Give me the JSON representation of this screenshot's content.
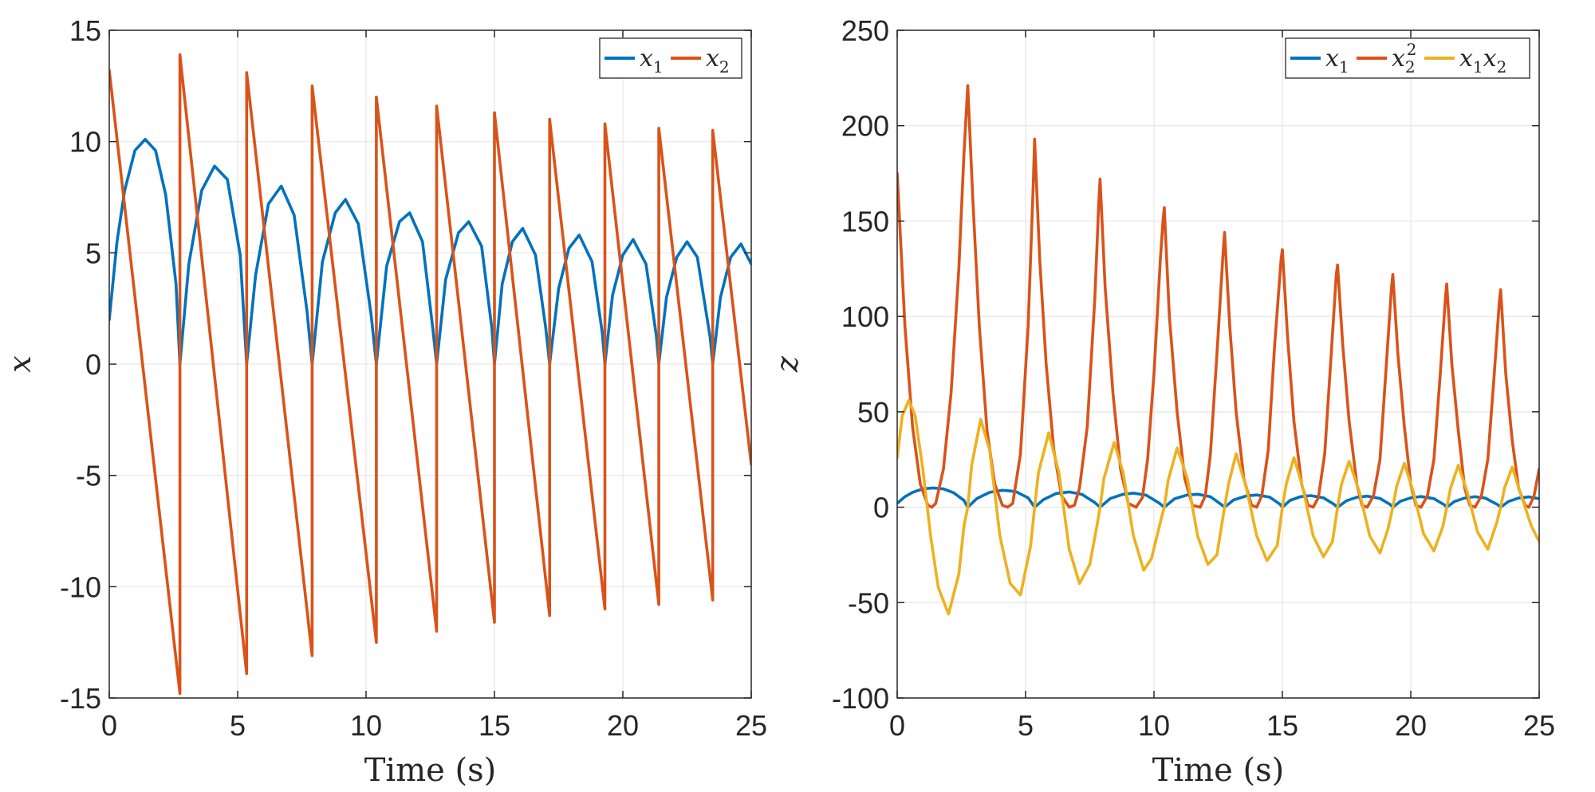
{
  "chart_data": [
    {
      "type": "line",
      "ylabel": "x",
      "xlabel": "Time (s)",
      "xlim": [
        0,
        25
      ],
      "ylim": [
        -15,
        15
      ],
      "xticks": [
        0,
        5,
        10,
        15,
        20,
        25
      ],
      "xtick_labels": [
        "0",
        "5",
        "10",
        "15",
        "20",
        "25"
      ],
      "yticks": [
        -15,
        -10,
        -5,
        0,
        5,
        10,
        15
      ],
      "ytick_labels": [
        "-15",
        "-10",
        "-5",
        "0",
        "5",
        "10",
        "15"
      ],
      "grid": true,
      "legend_position": "top-right",
      "series": [
        {
          "name": "x1",
          "legend": {
            "base": "x",
            "sub": "1",
            "sup": ""
          },
          "color": "#0072BD",
          "x": [
            0,
            0.3,
            0.6,
            1.0,
            1.4,
            1.8,
            2.2,
            2.6,
            2.75,
            3.1,
            3.6,
            4.1,
            4.6,
            5.1,
            5.35,
            5.7,
            6.2,
            6.7,
            7.2,
            7.7,
            7.9,
            8.3,
            8.8,
            9.2,
            9.7,
            10.2,
            10.4,
            10.8,
            11.3,
            11.7,
            12.2,
            12.6,
            12.75,
            13.1,
            13.6,
            14.0,
            14.5,
            14.9,
            15.0,
            15.3,
            15.7,
            16.1,
            16.6,
            17.0,
            17.15,
            17.5,
            17.9,
            18.3,
            18.8,
            19.2,
            19.3,
            19.6,
            20.0,
            20.4,
            20.9,
            21.3,
            21.4,
            21.7,
            22.1,
            22.5,
            22.9,
            23.4,
            23.5,
            23.8,
            24.2,
            24.6,
            25.0
          ],
          "y": [
            2.0,
            5.5,
            7.8,
            9.6,
            10.1,
            9.6,
            7.6,
            3.6,
            0,
            4.5,
            7.8,
            8.9,
            8.3,
            4.9,
            0,
            4.0,
            7.2,
            8.0,
            6.7,
            2.4,
            0,
            4.6,
            6.8,
            7.4,
            6.3,
            2.2,
            0,
            4.4,
            6.4,
            6.8,
            5.5,
            1.6,
            0,
            3.8,
            5.9,
            6.4,
            5.3,
            1.6,
            0,
            3.6,
            5.5,
            6.1,
            4.9,
            1.6,
            0,
            3.4,
            5.2,
            5.8,
            4.6,
            1.4,
            0,
            3.1,
            4.9,
            5.6,
            4.5,
            1.3,
            0,
            3.0,
            4.8,
            5.5,
            4.8,
            1.2,
            0,
            3.0,
            4.8,
            5.4,
            4.5
          ]
        },
        {
          "name": "x2",
          "legend": {
            "base": "x",
            "sub": "2",
            "sup": ""
          },
          "color": "#D95319",
          "x": [
            0,
            2.75,
            2.75,
            5.35,
            5.35,
            7.9,
            7.9,
            10.4,
            10.4,
            12.75,
            12.75,
            15.0,
            15.0,
            17.15,
            17.15,
            19.3,
            19.3,
            21.4,
            21.4,
            23.5,
            23.5,
            25.0
          ],
          "y": [
            13.2,
            -14.8,
            13.9,
            -13.9,
            13.1,
            -13.1,
            12.5,
            -12.5,
            12.0,
            -12.0,
            11.6,
            -11.6,
            11.3,
            -11.3,
            11.0,
            -11.0,
            10.8,
            -10.8,
            10.6,
            -10.6,
            10.5,
            -4.5
          ]
        }
      ]
    },
    {
      "type": "line",
      "ylabel": "z",
      "xlabel": "Time (s)",
      "xlim": [
        0,
        25
      ],
      "ylim": [
        -100,
        250
      ],
      "xticks": [
        0,
        5,
        10,
        15,
        20,
        25
      ],
      "xtick_labels": [
        "0",
        "5",
        "10",
        "15",
        "20",
        "25"
      ],
      "yticks": [
        -100,
        -50,
        0,
        50,
        100,
        150,
        200,
        250
      ],
      "ytick_labels": [
        "-100",
        "-50",
        "0",
        "50",
        "100",
        "150",
        "200",
        "250"
      ],
      "grid": true,
      "legend_position": "top-right",
      "series": [
        {
          "name": "x1",
          "legend": {
            "base": "x",
            "sub": "1",
            "sup": ""
          },
          "color": "#0072BD",
          "x": [
            0,
            0.3,
            0.6,
            1.0,
            1.4,
            1.8,
            2.2,
            2.6,
            2.75,
            3.1,
            3.6,
            4.1,
            4.6,
            5.1,
            5.35,
            5.7,
            6.2,
            6.7,
            7.2,
            7.7,
            7.9,
            8.3,
            8.8,
            9.2,
            9.7,
            10.2,
            10.4,
            10.8,
            11.3,
            11.7,
            12.2,
            12.6,
            12.75,
            13.1,
            13.6,
            14.0,
            14.5,
            14.9,
            15.0,
            15.3,
            15.7,
            16.1,
            16.6,
            17.0,
            17.15,
            17.5,
            17.9,
            18.3,
            18.8,
            19.2,
            19.3,
            19.6,
            20.0,
            20.4,
            20.9,
            21.3,
            21.4,
            21.7,
            22.1,
            22.5,
            22.9,
            23.4,
            23.5,
            23.8,
            24.2,
            24.6,
            25.0
          ],
          "y": [
            2.0,
            5.5,
            7.8,
            9.6,
            10.1,
            9.6,
            7.6,
            3.6,
            0,
            4.5,
            7.8,
            8.9,
            8.3,
            4.9,
            0,
            4.0,
            7.2,
            8.0,
            6.7,
            2.4,
            0,
            4.6,
            6.8,
            7.4,
            6.3,
            2.2,
            0,
            4.4,
            6.4,
            6.8,
            5.5,
            1.6,
            0,
            3.8,
            5.9,
            6.4,
            5.3,
            1.6,
            0,
            3.6,
            5.5,
            6.1,
            4.9,
            1.6,
            0,
            3.4,
            5.2,
            5.8,
            4.6,
            1.4,
            0,
            3.1,
            4.9,
            5.6,
            4.5,
            1.3,
            0,
            3.0,
            4.8,
            5.5,
            4.8,
            1.2,
            0,
            3.0,
            4.8,
            5.4,
            4.5
          ]
        },
        {
          "name": "x2^2",
          "legend": {
            "base": "x",
            "sub": "2",
            "sup": "2"
          },
          "color": "#D95319",
          "x": [
            0,
            0.3,
            0.6,
            0.9,
            1.2,
            1.35,
            1.5,
            1.8,
            2.1,
            2.4,
            2.6,
            2.75,
            2.95,
            3.2,
            3.5,
            3.8,
            4.1,
            4.3,
            4.5,
            4.8,
            5.1,
            5.3,
            5.35,
            5.55,
            5.8,
            6.1,
            6.4,
            6.7,
            6.9,
            7.1,
            7.4,
            7.7,
            7.85,
            7.9,
            8.1,
            8.4,
            8.7,
            9.0,
            9.3,
            9.55,
            9.75,
            10.0,
            10.25,
            10.35,
            10.4,
            10.6,
            10.9,
            11.2,
            11.5,
            11.8,
            12.0,
            12.2,
            12.45,
            12.7,
            12.75,
            12.95,
            13.2,
            13.5,
            13.8,
            14.0,
            14.2,
            14.45,
            14.7,
            14.95,
            15.0,
            15.2,
            15.45,
            15.75,
            16.0,
            16.2,
            16.4,
            16.65,
            16.9,
            17.1,
            17.15,
            17.35,
            17.6,
            17.9,
            18.1,
            18.3,
            18.55,
            18.8,
            19.05,
            19.25,
            19.3,
            19.5,
            19.75,
            20.0,
            20.2,
            20.4,
            20.65,
            20.9,
            21.15,
            21.35,
            21.4,
            21.6,
            21.85,
            22.1,
            22.3,
            22.5,
            22.75,
            23.0,
            23.25,
            23.45,
            23.5,
            23.7,
            23.95,
            24.2,
            24.45,
            24.6,
            24.8,
            25.0
          ],
          "y": [
            175,
            95,
            42,
            12,
            1,
            0,
            2,
            20,
            60,
            125,
            185,
            221,
            160,
            95,
            40,
            12,
            1,
            0,
            2,
            28,
            95,
            170,
            193,
            130,
            75,
            30,
            6,
            0,
            1,
            10,
            42,
            110,
            160,
            172,
            115,
            60,
            20,
            2,
            0,
            5,
            25,
            70,
            130,
            150,
            157,
            100,
            50,
            15,
            1,
            0,
            6,
            28,
            80,
            135,
            144,
            95,
            50,
            15,
            1,
            0,
            6,
            30,
            85,
            130,
            135,
            90,
            45,
            12,
            1,
            0,
            5,
            28,
            80,
            122,
            127,
            85,
            45,
            12,
            1,
            0,
            6,
            25,
            75,
            115,
            122,
            80,
            42,
            12,
            1,
            0,
            6,
            25,
            70,
            110,
            117,
            75,
            40,
            10,
            1,
            0,
            6,
            25,
            70,
            108,
            114,
            70,
            35,
            10,
            1,
            0,
            6,
            20
          ]
        },
        {
          "name": "x1x2",
          "legend": {
            "base": "x",
            "sub": "1",
            "sup": "",
            "base2": "x",
            "sub2": "2"
          },
          "color": "#EDB120",
          "x": [
            0,
            0.2,
            0.45,
            0.7,
            1.0,
            1.3,
            1.6,
            2.0,
            2.4,
            2.6,
            2.75,
            2.9,
            3.25,
            3.6,
            4.0,
            4.4,
            4.8,
            5.2,
            5.35,
            5.5,
            5.9,
            6.3,
            6.7,
            7.1,
            7.5,
            7.8,
            7.9,
            8.05,
            8.45,
            8.8,
            9.2,
            9.6,
            9.9,
            10.3,
            10.4,
            10.55,
            10.9,
            11.3,
            11.7,
            12.1,
            12.45,
            12.75,
            12.9,
            13.2,
            13.6,
            14.0,
            14.4,
            14.8,
            15.0,
            15.15,
            15.45,
            15.8,
            16.2,
            16.6,
            16.95,
            17.15,
            17.3,
            17.6,
            18.0,
            18.4,
            18.8,
            19.1,
            19.3,
            19.45,
            19.75,
            20.1,
            20.5,
            20.9,
            21.25,
            21.4,
            21.55,
            21.85,
            22.2,
            22.6,
            23.0,
            23.35,
            23.5,
            23.65,
            23.95,
            24.3,
            24.7,
            25.0
          ],
          "y": [
            26,
            48,
            56,
            48,
            20,
            -15,
            -42,
            -56,
            -35,
            -10,
            0,
            22,
            46,
            30,
            -15,
            -40,
            -46,
            -20,
            0,
            18,
            39,
            18,
            -22,
            -40,
            -30,
            -8,
            0,
            15,
            34,
            18,
            -15,
            -33,
            -27,
            -5,
            0,
            14,
            31,
            15,
            -15,
            -30,
            -25,
            0,
            12,
            28,
            10,
            -15,
            -28,
            -20,
            0,
            12,
            26,
            10,
            -15,
            -26,
            -18,
            0,
            12,
            24,
            8,
            -15,
            -24,
            -12,
            0,
            11,
            23,
            8,
            -14,
            -23,
            -10,
            0,
            10,
            22,
            8,
            -13,
            -22,
            -8,
            0,
            10,
            21,
            6,
            -10,
            -18
          ]
        }
      ]
    }
  ]
}
